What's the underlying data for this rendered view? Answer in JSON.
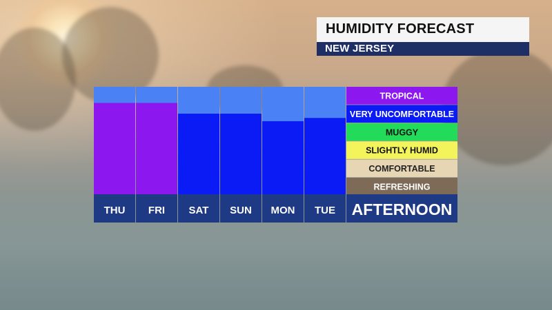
{
  "header": {
    "title": "HUMIDITY FORECAST",
    "subtitle": "NEW JERSEY"
  },
  "colors": {
    "title_bg": "#f5f5f5",
    "subtitle_bg": "#1e2f66",
    "day_label_bg": "#1e3a85",
    "empty_column": "#4a82f5",
    "tropical": "#8d17ef",
    "very_uncomfortable": "#0a1bf5",
    "muggy": "#21db59",
    "slightly_humid": "#f3f35c",
    "comfortable": "#e6d6b4",
    "refreshing": "#7d6a57"
  },
  "chart_data": {
    "type": "bar",
    "title": "HUMIDITY FORECAST",
    "subtitle": "NEW JERSEY",
    "period_label": "AFTERNOON",
    "categories": [
      "THU",
      "FRI",
      "SAT",
      "SUN",
      "MON",
      "TUE"
    ],
    "values": [
      0.85,
      0.85,
      0.75,
      0.75,
      0.68,
      0.71
    ],
    "value_unit": "fraction of scale height",
    "ylim": [
      0,
      1
    ],
    "bar_levels": [
      "TROPICAL",
      "TROPICAL",
      "VERY UNCOMFORTABLE",
      "VERY UNCOMFORTABLE",
      "VERY UNCOMFORTABLE",
      "VERY UNCOMFORTABLE"
    ],
    "legend": [
      {
        "label": "TROPICAL",
        "color": "#8d17ef",
        "text_color": "#ffffff"
      },
      {
        "label": "VERY UNCOMFORTABLE",
        "color": "#0a1bf5",
        "text_color": "#ffffff"
      },
      {
        "label": "MUGGY",
        "color": "#21db59",
        "text_color": "#111111"
      },
      {
        "label": "SLIGHTLY HUMID",
        "color": "#f3f35c",
        "text_color": "#111111"
      },
      {
        "label": "COMFORTABLE",
        "color": "#e6d6b4",
        "text_color": "#222222"
      },
      {
        "label": "REFRESHING",
        "color": "#7d6a57",
        "text_color": "#ffffff"
      }
    ],
    "legend_placement": "right",
    "grid": false
  }
}
